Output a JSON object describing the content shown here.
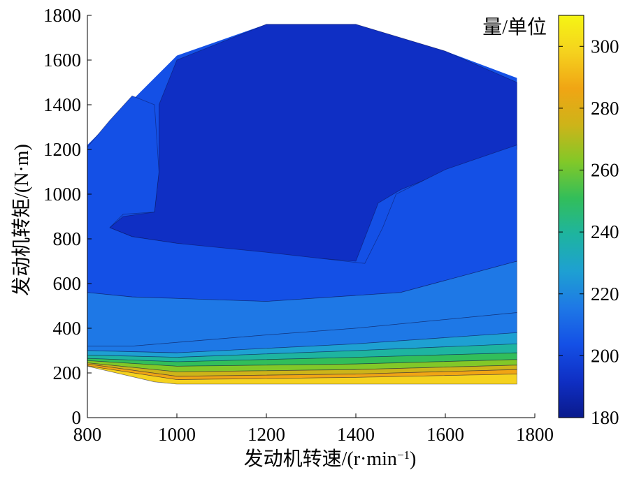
{
  "chart_data": {
    "type": "contour",
    "xlabel_parts": [
      "发动机转速/(r·min",
      "−1",
      ")"
    ],
    "ylabel": "发动机转矩/(N·m)",
    "colorbar_label": "量/单位",
    "xlim": [
      800,
      1800
    ],
    "ylim": [
      0,
      1800
    ],
    "clim": [
      180,
      310
    ],
    "x_ticks": [
      "800",
      "1000",
      "1200",
      "1400",
      "1600",
      "1800"
    ],
    "y_ticks": [
      "0",
      "200",
      "400",
      "600",
      "800",
      "1000",
      "1200",
      "1400",
      "1600",
      "1800"
    ],
    "colorbar_ticks": [
      "180",
      "200",
      "220",
      "240",
      "260",
      "280",
      "300"
    ],
    "colormap": [
      "#0a1a8c",
      "#0f2fc4",
      "#1450e6",
      "#1e78e6",
      "#1ea0d2",
      "#1eb4a0",
      "#32be5a",
      "#82c828",
      "#cdb419",
      "#f0a514",
      "#f5d21e",
      "#f5f514"
    ],
    "region_boundary": [
      [
        800,
        1220
      ],
      [
        1000,
        1620
      ],
      [
        1200,
        1760
      ],
      [
        1400,
        1760
      ],
      [
        1600,
        1640
      ],
      [
        1760,
        1520
      ],
      [
        1760,
        150
      ],
      [
        1000,
        150
      ],
      [
        950,
        160
      ],
      [
        800,
        230
      ]
    ],
    "regions": [
      {
        "level": 190,
        "points": [
          [
            1000,
            1600
          ],
          [
            1200,
            1760
          ],
          [
            1400,
            1760
          ],
          [
            1600,
            1640
          ],
          [
            1760,
            1500
          ],
          [
            1760,
            1200
          ],
          [
            1600,
            1100
          ],
          [
            1500,
            1020
          ],
          [
            1450,
            960
          ],
          [
            1400,
            700
          ],
          [
            1200,
            730
          ],
          [
            1000,
            780
          ],
          [
            900,
            810
          ],
          [
            850,
            850
          ],
          [
            880,
            900
          ],
          [
            950,
            920
          ],
          [
            960,
            1100
          ],
          [
            960,
            1400
          ]
        ]
      },
      {
        "level": 200,
        "points": [
          [
            1760,
            1220
          ],
          [
            1600,
            1110
          ],
          [
            1490,
            1000
          ],
          [
            1460,
            850
          ],
          [
            1420,
            690
          ],
          [
            1200,
            740
          ],
          [
            1000,
            780
          ],
          [
            900,
            810
          ],
          [
            850,
            850
          ],
          [
            880,
            910
          ],
          [
            950,
            920
          ],
          [
            960,
            1100
          ],
          [
            950,
            1400
          ],
          [
            900,
            1440
          ],
          [
            850,
            1330
          ],
          [
            800,
            1210
          ],
          [
            800,
            560
          ],
          [
            900,
            540
          ],
          [
            1200,
            520
          ],
          [
            1500,
            560
          ],
          [
            1760,
            700
          ]
        ]
      },
      {
        "level": 210,
        "points": [
          [
            800,
            560
          ],
          [
            900,
            540
          ],
          [
            1200,
            520
          ],
          [
            1500,
            560
          ],
          [
            1760,
            700
          ],
          [
            1760,
            470
          ],
          [
            1400,
            400
          ],
          [
            1200,
            370
          ],
          [
            900,
            320
          ],
          [
            800,
            320
          ]
        ]
      },
      {
        "level": 220,
        "points": [
          [
            800,
            320
          ],
          [
            900,
            320
          ],
          [
            1200,
            370
          ],
          [
            1400,
            400
          ],
          [
            1760,
            470
          ],
          [
            1760,
            380
          ],
          [
            1400,
            330
          ],
          [
            1000,
            290
          ],
          [
            800,
            300
          ]
        ]
      },
      {
        "level": 230,
        "points": [
          [
            800,
            300
          ],
          [
            1000,
            290
          ],
          [
            1400,
            330
          ],
          [
            1760,
            380
          ],
          [
            1760,
            330
          ],
          [
            1400,
            300
          ],
          [
            1000,
            270
          ],
          [
            800,
            280
          ]
        ]
      },
      {
        "level": 240,
        "points": [
          [
            800,
            280
          ],
          [
            1000,
            270
          ],
          [
            1400,
            300
          ],
          [
            1760,
            330
          ],
          [
            1760,
            290
          ],
          [
            1400,
            270
          ],
          [
            1000,
            250
          ],
          [
            800,
            265
          ]
        ]
      },
      {
        "level": 250,
        "points": [
          [
            800,
            265
          ],
          [
            1000,
            250
          ],
          [
            1400,
            270
          ],
          [
            1760,
            290
          ],
          [
            1760,
            260
          ],
          [
            1400,
            240
          ],
          [
            1000,
            230
          ],
          [
            800,
            255
          ]
        ]
      },
      {
        "level": 260,
        "points": [
          [
            800,
            255
          ],
          [
            1000,
            230
          ],
          [
            1400,
            240
          ],
          [
            1760,
            260
          ],
          [
            1760,
            235
          ],
          [
            1400,
            215
          ],
          [
            1000,
            205
          ],
          [
            800,
            245
          ]
        ]
      },
      {
        "level": 270,
        "points": [
          [
            800,
            245
          ],
          [
            1000,
            205
          ],
          [
            1400,
            215
          ],
          [
            1760,
            235
          ],
          [
            1760,
            215
          ],
          [
            1400,
            195
          ],
          [
            1000,
            185
          ],
          [
            800,
            240
          ]
        ]
      },
      {
        "level": 290,
        "points": [
          [
            800,
            240
          ],
          [
            1000,
            185
          ],
          [
            1400,
            195
          ],
          [
            1760,
            215
          ],
          [
            1760,
            195
          ],
          [
            1400,
            180
          ],
          [
            1000,
            170
          ],
          [
            800,
            232
          ]
        ]
      },
      {
        "level": 300,
        "points": [
          [
            800,
            232
          ],
          [
            1000,
            170
          ],
          [
            1400,
            180
          ],
          [
            1760,
            195
          ],
          [
            1760,
            150
          ],
          [
            1000,
            150
          ],
          [
            950,
            160
          ],
          [
            800,
            230
          ]
        ]
      }
    ]
  }
}
